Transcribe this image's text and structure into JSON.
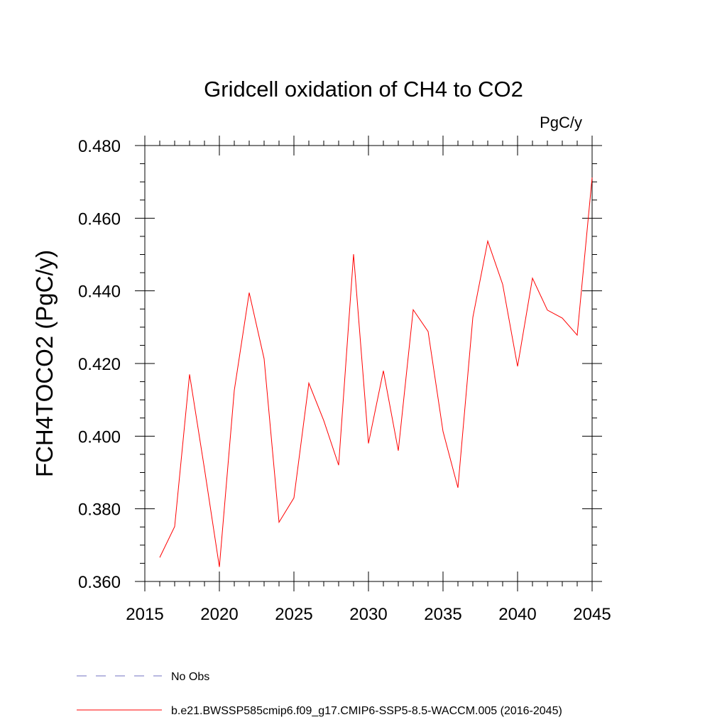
{
  "chart_data": {
    "type": "line",
    "title": "Gridcell oxidation of CH4 to CO2",
    "units": "PgC/y",
    "ylabel": "FCH4TOCO2  (PgC/y)",
    "xlabel": "",
    "xlim": [
      2015,
      2045
    ],
    "ylim": [
      0.36,
      0.48
    ],
    "x_ticks": [
      2015,
      2020,
      2025,
      2030,
      2035,
      2040,
      2045
    ],
    "x_tick_labels": [
      "2015",
      "2020",
      "2025",
      "2030",
      "2035",
      "2040",
      "2045"
    ],
    "y_ticks": [
      0.36,
      0.38,
      0.4,
      0.42,
      0.44,
      0.46,
      0.48
    ],
    "y_tick_labels": [
      "0.360",
      "0.380",
      "0.400",
      "0.420",
      "0.440",
      "0.460",
      "0.480"
    ],
    "grid": false,
    "legend_position": "bottom-left",
    "series": [
      {
        "name": "b.e21.BWSSP585cmip6.f09_g17.CMIP6-SSP5-8.5-WACCM.005 (2016-2045)",
        "color": "#ff0000",
        "style": "solid",
        "x": [
          2016,
          2017,
          2018,
          2019,
          2020,
          2021,
          2022,
          2023,
          2024,
          2025,
          2026,
          2027,
          2028,
          2029,
          2030,
          2031,
          2032,
          2033,
          2034,
          2035,
          2036,
          2037,
          2038,
          2039,
          2040,
          2041,
          2042,
          2043,
          2044,
          2045
        ],
        "values": [
          0.3666,
          0.3751,
          0.417,
          0.391,
          0.364,
          0.4126,
          0.4395,
          0.4213,
          0.3763,
          0.383,
          0.4146,
          0.4043,
          0.392,
          0.4501,
          0.398,
          0.418,
          0.396,
          0.4348,
          0.4288,
          0.4013,
          0.3858,
          0.4327,
          0.4537,
          0.4418,
          0.4192,
          0.4435,
          0.4347,
          0.4325,
          0.4278,
          0.4712
        ]
      },
      {
        "name": "No Obs",
        "color": "#7070c0",
        "style": "dashed",
        "x": [],
        "values": []
      }
    ]
  }
}
